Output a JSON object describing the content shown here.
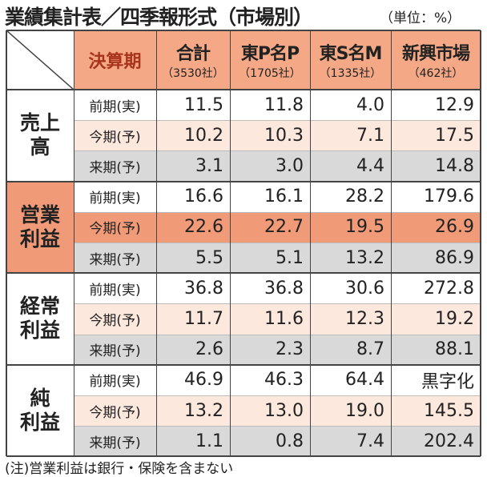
{
  "title": "業績集計表／四季報形式（市場別）",
  "unit": "（単位：%）",
  "table": {
    "corner": "決算期",
    "columns": [
      {
        "name": "合計",
        "count": "（3530社）"
      },
      {
        "name": "東P名P",
        "count": "（1705社）"
      },
      {
        "name": "東S名M",
        "count": "（1335社）"
      },
      {
        "name": "新興市場",
        "count": "（462社）"
      }
    ],
    "groups": [
      {
        "label": [
          "売上",
          "高"
        ],
        "rows": [
          {
            "period": "前期(実)",
            "values": [
              "11.5",
              "11.8",
              "4.0",
              "12.9"
            ]
          },
          {
            "period": "今期(予)",
            "values": [
              "10.2",
              "10.3",
              "7.1",
              "17.5"
            ]
          },
          {
            "period": "来期(予)",
            "values": [
              "3.1",
              "3.0",
              "4.4",
              "14.8"
            ]
          }
        ]
      },
      {
        "label": [
          "営業",
          "利益"
        ],
        "rows": [
          {
            "period": "前期(実)",
            "values": [
              "16.6",
              "16.1",
              "28.2",
              "179.6"
            ]
          },
          {
            "period": "今期(予)",
            "values": [
              "22.6",
              "22.7",
              "19.5",
              "26.9"
            ]
          },
          {
            "period": "来期(予)",
            "values": [
              "5.5",
              "5.1",
              "13.2",
              "86.9"
            ]
          }
        ]
      },
      {
        "label": [
          "経常",
          "利益"
        ],
        "rows": [
          {
            "period": "前期(実)",
            "values": [
              "36.8",
              "36.8",
              "30.6",
              "272.8"
            ]
          },
          {
            "period": "今期(予)",
            "values": [
              "11.7",
              "11.6",
              "12.3",
              "19.2"
            ]
          },
          {
            "period": "来期(予)",
            "values": [
              "2.6",
              "2.3",
              "8.7",
              "88.1"
            ]
          }
        ]
      },
      {
        "label": [
          "純",
          "利益"
        ],
        "rows": [
          {
            "period": "前期(実)",
            "values": [
              "46.9",
              "46.3",
              "64.4",
              "黒字化"
            ]
          },
          {
            "period": "今期(予)",
            "values": [
              "13.2",
              "13.0",
              "19.0",
              "145.5"
            ]
          },
          {
            "period": "来期(予)",
            "values": [
              "1.1",
              "0.8",
              "7.4",
              "202.4"
            ]
          }
        ]
      }
    ]
  },
  "note": "(注)営業利益は銀行・保険を含まない"
}
